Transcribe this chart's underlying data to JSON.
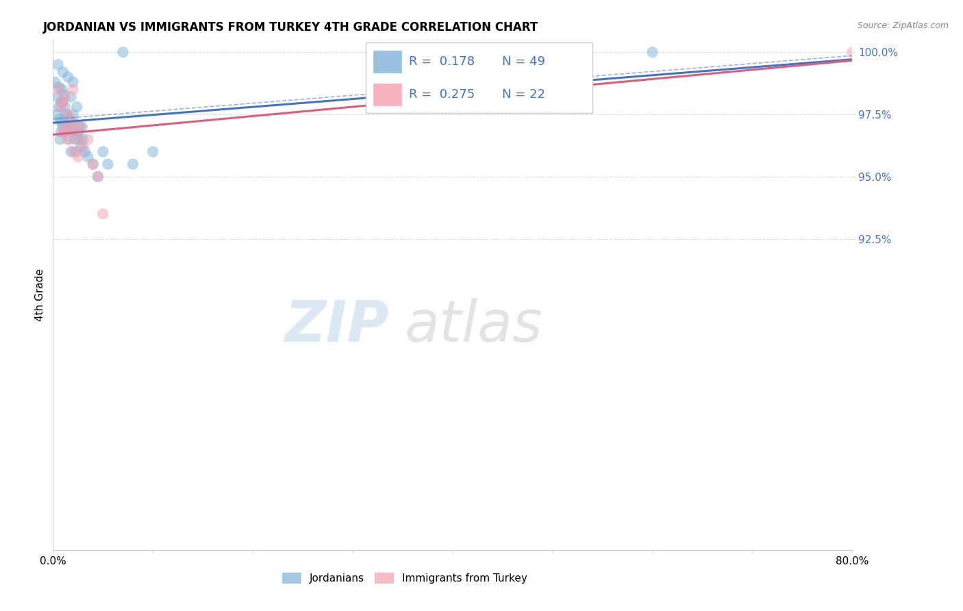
{
  "title": "JORDANIAN VS IMMIGRANTS FROM TURKEY 4TH GRADE CORRELATION CHART",
  "source_text": "Source: ZipAtlas.com",
  "ylabel": "4th Grade",
  "x_min": 0.0,
  "x_max": 80.0,
  "y_min": 80.0,
  "y_max": 100.5,
  "y_ticks": [
    100.0,
    97.5,
    95.0,
    92.5
  ],
  "y_tick_labels": [
    "100.0%",
    "97.5%",
    "95.0%",
    "92.5%"
  ],
  "legend_R1": "0.178",
  "legend_N1": "49",
  "legend_R2": "0.275",
  "legend_N2": "22",
  "legend_label1": "Jordanians",
  "legend_label2": "Immigrants from Turkey",
  "blue_color": "#7EB3D8",
  "pink_color": "#F4A0B0",
  "blue_line_color": "#4472C4",
  "pink_line_color": "#E05C7A",
  "legend_text_color": "#4472C4",
  "blue_x": [
    0.2,
    0.4,
    0.5,
    0.5,
    0.6,
    0.6,
    0.7,
    0.7,
    0.8,
    0.8,
    0.8,
    0.9,
    1.0,
    1.0,
    1.0,
    1.1,
    1.2,
    1.2,
    1.3,
    1.4,
    1.5,
    1.5,
    1.6,
    1.7,
    1.8,
    1.8,
    1.9,
    2.0,
    2.0,
    2.1,
    2.2,
    2.3,
    2.4,
    2.5,
    2.6,
    2.7,
    2.8,
    2.9,
    3.0,
    3.2,
    3.5,
    4.0,
    4.5,
    5.0,
    5.5,
    7.0,
    8.0,
    10.0,
    60.0
  ],
  "blue_y": [
    98.8,
    97.5,
    99.5,
    98.2,
    98.6,
    97.8,
    97.3,
    96.5,
    98.0,
    97.2,
    96.8,
    98.5,
    99.2,
    98.0,
    97.0,
    98.3,
    97.8,
    96.8,
    97.5,
    97.0,
    99.0,
    97.4,
    96.5,
    97.0,
    98.2,
    96.0,
    96.8,
    98.8,
    97.5,
    97.2,
    96.5,
    96.0,
    97.8,
    96.8,
    97.0,
    96.5,
    96.2,
    97.0,
    96.5,
    96.0,
    95.8,
    95.5,
    95.0,
    96.0,
    95.5,
    100.0,
    95.5,
    96.0,
    100.0
  ],
  "pink_x": [
    0.5,
    0.8,
    0.9,
    1.0,
    1.2,
    1.2,
    1.4,
    1.5,
    1.6,
    1.8,
    2.0,
    2.0,
    2.2,
    2.5,
    2.5,
    2.8,
    3.0,
    3.5,
    4.0,
    4.5,
    5.0,
    80.0
  ],
  "pink_y": [
    98.5,
    97.8,
    98.0,
    96.8,
    98.2,
    97.0,
    96.5,
    97.5,
    96.8,
    97.2,
    98.5,
    96.0,
    97.0,
    96.5,
    95.8,
    97.0,
    96.2,
    96.5,
    95.5,
    95.0,
    93.5,
    100.0
  ],
  "watermark_zip_color": "#A8C8E8",
  "watermark_atlas_color": "#BBBBBB"
}
